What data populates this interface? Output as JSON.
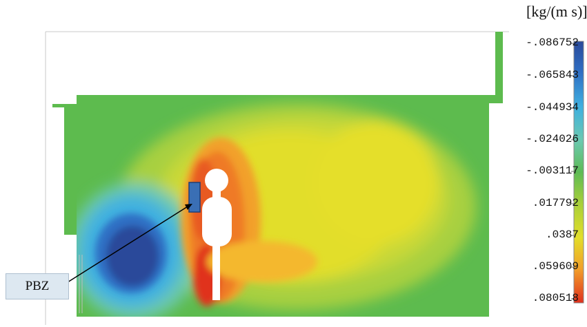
{
  "legend": {
    "unit": "[kg/(m s)]",
    "ticks": [
      "-.086752",
      "-.065843",
      "-.044934",
      "-.024026",
      "-.003117",
      ".017792",
      ".0387",
      ".059609",
      ".080518"
    ],
    "colors": [
      "#2a4a9a",
      "#2f6fc4",
      "#3fb0e0",
      "#6cc9b0",
      "#5dbb55",
      "#a8cf3a",
      "#e2de2a",
      "#f2a02a",
      "#e0301e"
    ]
  },
  "annotation": {
    "label": "PBZ",
    "marker_color": "#3a6fb5"
  },
  "colors": {
    "background_field": "#5dbb4e",
    "domain_border": "#bdbdbd"
  }
}
